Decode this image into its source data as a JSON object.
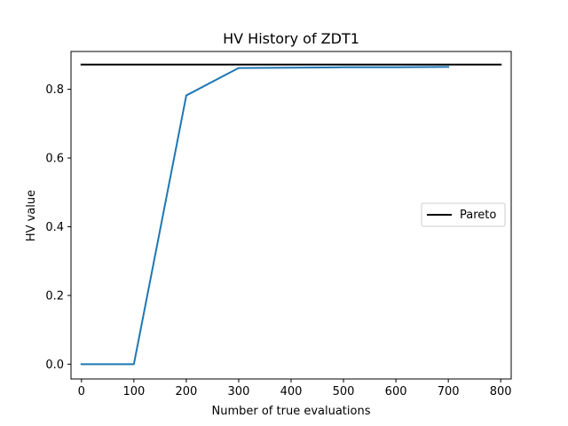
{
  "chart_data": {
    "type": "line",
    "title": "HV History of ZDT1",
    "xlabel": "Number of true evaluations",
    "ylabel": "HV value",
    "xlim": [
      -20,
      820
    ],
    "ylim": [
      -0.043,
      0.91
    ],
    "xticks": [
      0,
      100,
      200,
      300,
      400,
      500,
      600,
      700,
      800
    ],
    "yticks": [
      0.0,
      0.2,
      0.4,
      0.6,
      0.8
    ],
    "ytick_labels": [
      "0.0",
      "0.2",
      "0.4",
      "0.6",
      "0.8"
    ],
    "grid": false,
    "legend": {
      "placement": "center-right",
      "entries": [
        "Pareto"
      ]
    },
    "series": [
      {
        "color": "#1f77b4",
        "x": [
          0,
          100,
          200,
          300,
          400,
          500,
          600,
          700
        ],
        "y": [
          0.0,
          0.0,
          0.782,
          0.862,
          0.863,
          0.864,
          0.864,
          0.865
        ]
      },
      {
        "name": "Pareto",
        "color": "#000000",
        "x": [
          0,
          800
        ],
        "y": [
          0.872,
          0.872
        ]
      }
    ]
  }
}
